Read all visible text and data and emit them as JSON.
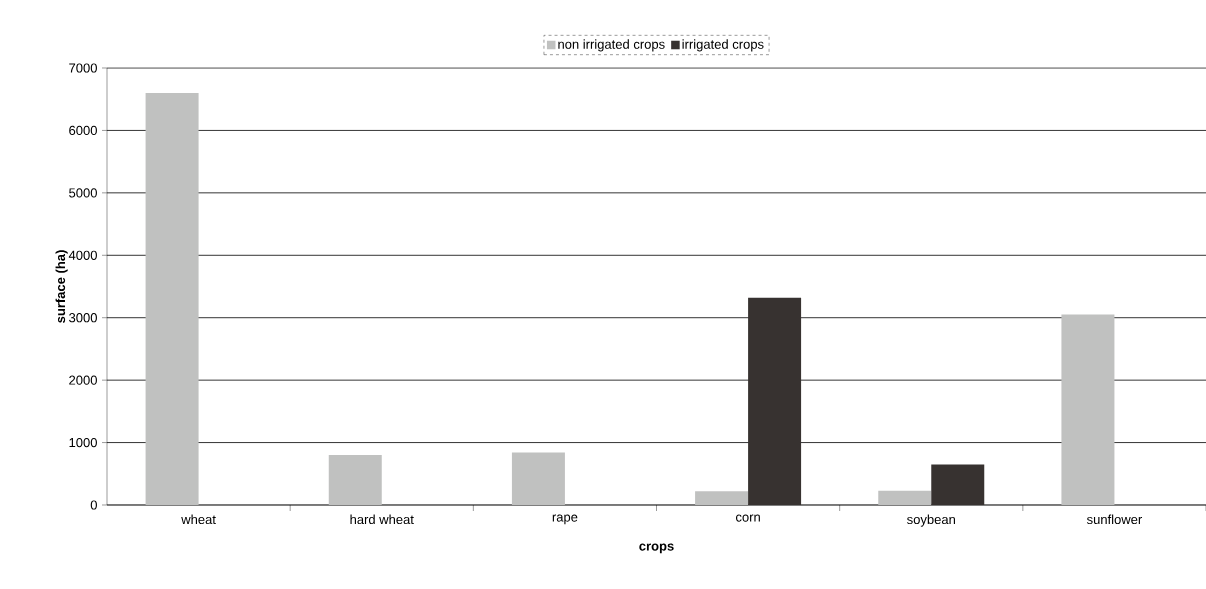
{
  "chart_data": {
    "type": "bar",
    "xlabel": "crops",
    "ylabel": "surface (ha)",
    "categories": [
      "wheat",
      "hard wheat",
      "rape",
      "corn",
      "soybean",
      "sunflower"
    ],
    "series": [
      {
        "name": "non irrigated crops",
        "color": "#c0c1c0",
        "values": [
          6600,
          800,
          840,
          220,
          230,
          3050
        ]
      },
      {
        "name": "irrigated crops",
        "color": "#373230",
        "values": [
          null,
          null,
          null,
          3320,
          650,
          null
        ]
      }
    ],
    "ylim": [
      0,
      7000
    ],
    "yticks": [
      0,
      1000,
      2000,
      3000,
      4000,
      5000,
      6000,
      7000
    ],
    "grid": "y",
    "legend": "top"
  }
}
